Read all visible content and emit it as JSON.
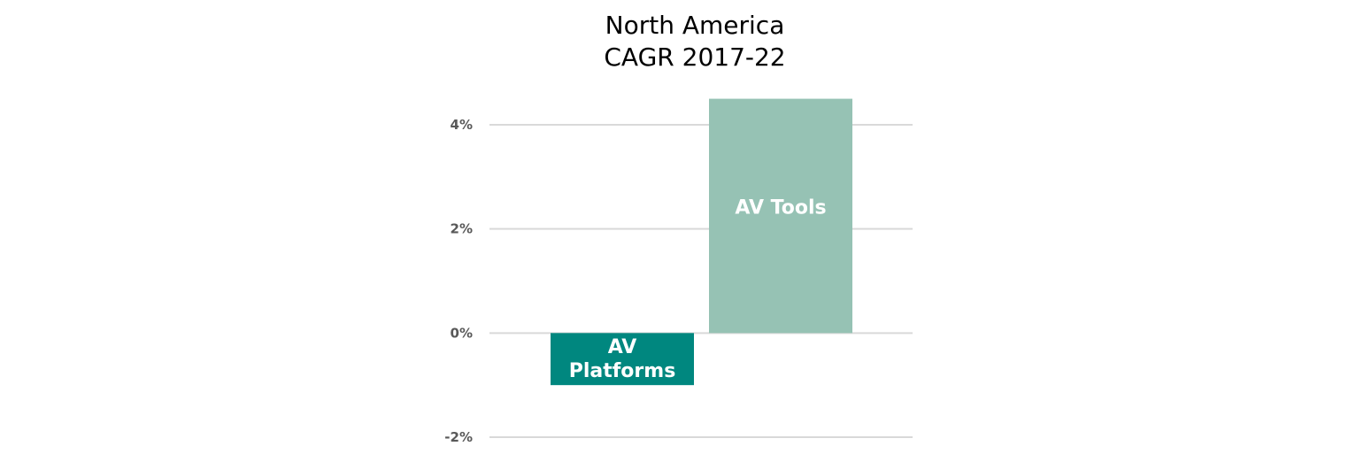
{
  "chart_data": {
    "type": "bar",
    "title": [
      "North America",
      "CAGR 2017-22"
    ],
    "categories": [
      "AV Platforms",
      "AV Tools"
    ],
    "values": [
      -1.0,
      4.5
    ],
    "bar_labels": [
      [
        "AV",
        "Platforms"
      ],
      [
        "AV Tools"
      ]
    ],
    "colors": [
      "#00877F",
      "#96C2B4"
    ],
    "ylim": [
      -2,
      4
    ],
    "yticks": [
      -2,
      0,
      2,
      4
    ],
    "ytick_labels": [
      "-2%",
      "0%",
      "2%",
      "4%"
    ],
    "grid": true,
    "xlabel": "",
    "ylabel": ""
  }
}
